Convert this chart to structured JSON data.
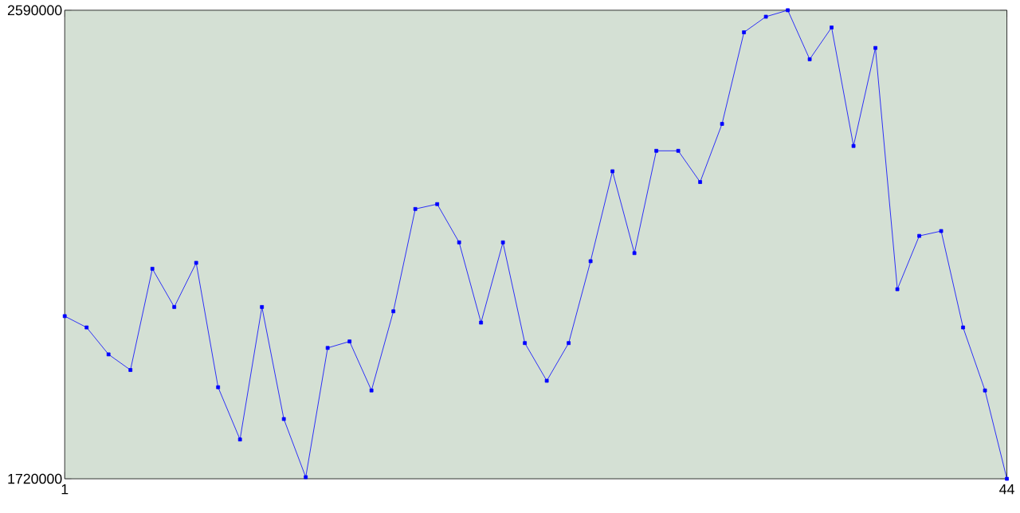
{
  "chart_data": {
    "type": "line",
    "x": [
      1,
      2,
      3,
      4,
      5,
      6,
      7,
      8,
      9,
      10,
      11,
      12,
      13,
      14,
      15,
      16,
      17,
      18,
      19,
      20,
      21,
      22,
      23,
      24,
      25,
      26,
      27,
      28,
      29,
      30,
      31,
      32,
      33,
      34,
      35,
      36,
      37,
      38,
      39,
      40,
      41,
      42,
      43,
      44
    ],
    "series": [
      {
        "color": "#0000ff",
        "values": [
          2022000,
          2001000,
          1951000,
          1922000,
          2110000,
          2039000,
          2121000,
          1890000,
          1793000,
          2039000,
          1831000,
          1723000,
          1963000,
          1975000,
          1884000,
          2031000,
          2221000,
          2230000,
          2159000,
          2010000,
          2159000,
          1972000,
          1902000,
          1972000,
          2124000,
          2291000,
          2139000,
          2329000,
          2329000,
          2271000,
          2379000,
          2549000,
          2578000,
          2590000,
          2499000,
          2558000,
          2338000,
          2520000,
          2072000,
          2171000,
          2180000,
          2001000,
          1884000,
          1720000
        ]
      }
    ],
    "xlim": [
      1,
      44
    ],
    "xticks": [
      1,
      44
    ],
    "ylim": [
      1720000,
      2590000
    ],
    "yticks": [
      1720000,
      2590000
    ],
    "grid": false,
    "marker": "square",
    "line_style": "solid"
  }
}
